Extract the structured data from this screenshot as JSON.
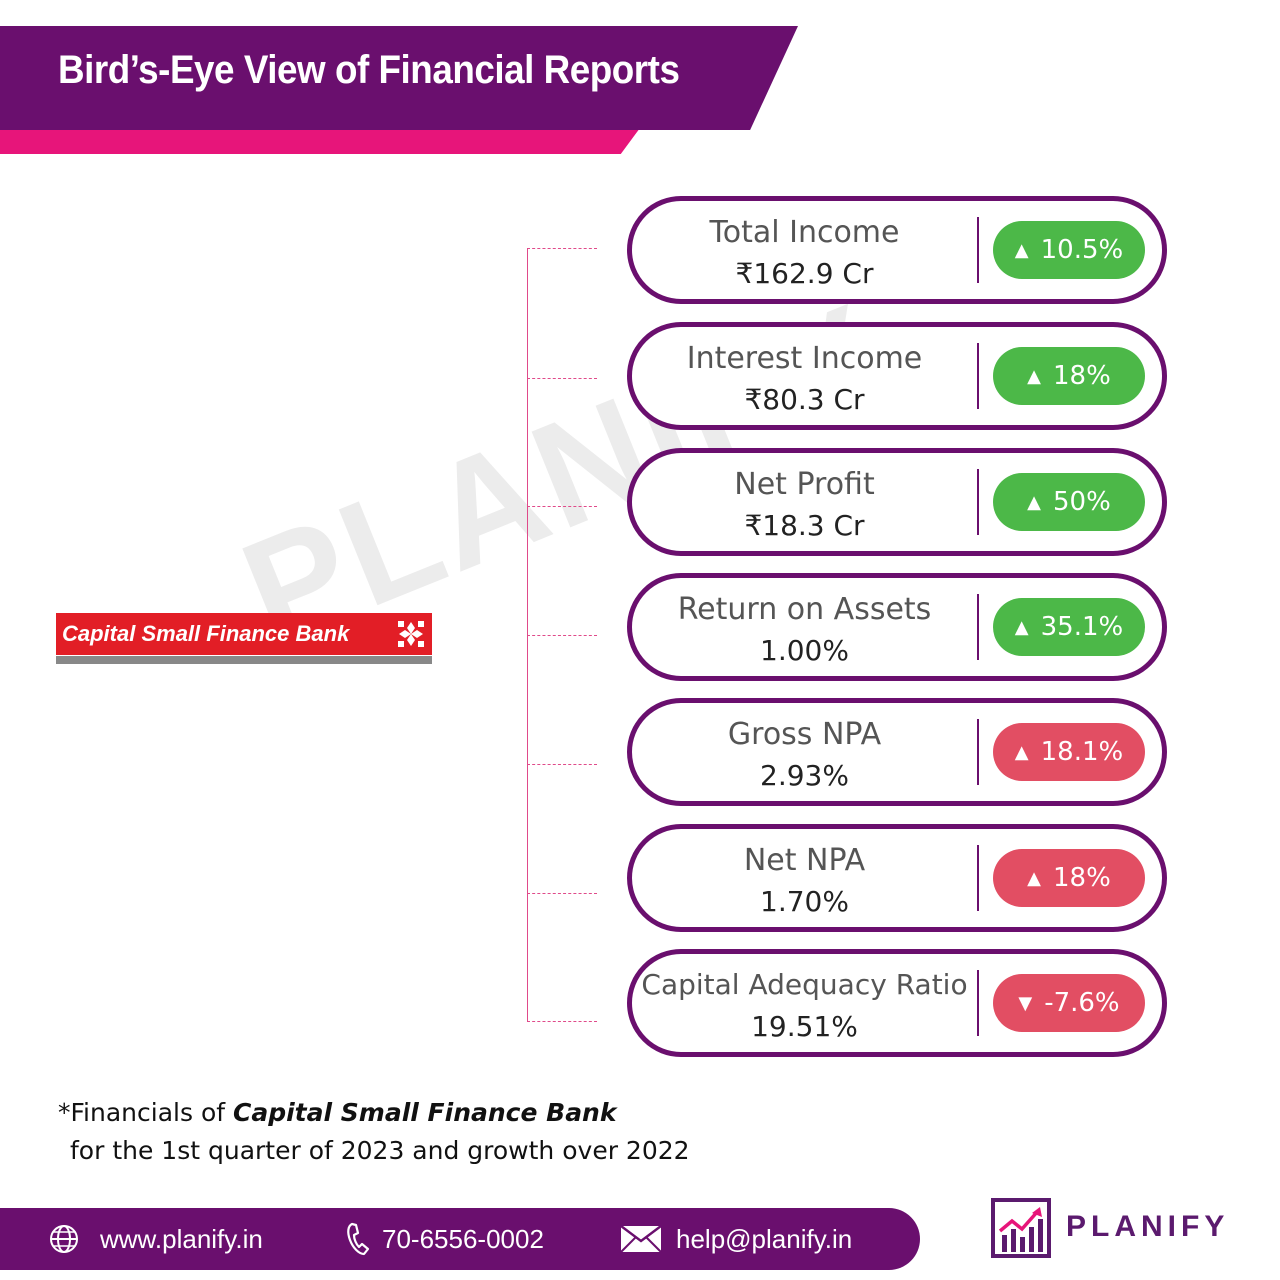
{
  "header": {
    "title": "Bird’s-Eye View of Financial Reports"
  },
  "watermark": "PLANIFY",
  "bank_logo": {
    "text": "Capital Small Finance Bank"
  },
  "metrics": [
    {
      "label": "Total Income",
      "value": "₹162.9 Cr",
      "change": "10.5%",
      "arrow": "▲",
      "status": "green"
    },
    {
      "label": "Interest Income",
      "value": "₹80.3 Cr",
      "change": "18%",
      "arrow": "▲",
      "status": "green"
    },
    {
      "label": "Net Profit",
      "value": "₹18.3 Cr",
      "change": "50%",
      "arrow": "▲",
      "status": "green"
    },
    {
      "label": "Return on Assets",
      "value": "1.00%",
      "change": "35.1%",
      "arrow": "▲",
      "status": "green"
    },
    {
      "label": "Gross NPA",
      "value": "2.93%",
      "change": "18.1%",
      "arrow": "▲",
      "status": "red"
    },
    {
      "label": "Net NPA",
      "value": "1.70%",
      "change": "18%",
      "arrow": "▲",
      "status": "red"
    },
    {
      "label": "Capital Adequacy Ratio",
      "value": "19.51%",
      "change": "-7.6%",
      "arrow": "▼",
      "status": "red"
    }
  ],
  "footnote": {
    "prefix": "*Financials of ",
    "bank": "Capital Small Finance Bank",
    "line2": "for the  1st quarter of 2023 and growth over 2022"
  },
  "footer": {
    "website": "www.planify.in",
    "phone": "70-6556-0002",
    "email": "help@planify.in"
  },
  "brand": {
    "name": "PLANIFY"
  },
  "colors": {
    "purple": "#6a0f6e",
    "pink": "#e7157a",
    "green": "#4cb848",
    "red": "#e24e63",
    "bank_red": "#e21e26"
  }
}
